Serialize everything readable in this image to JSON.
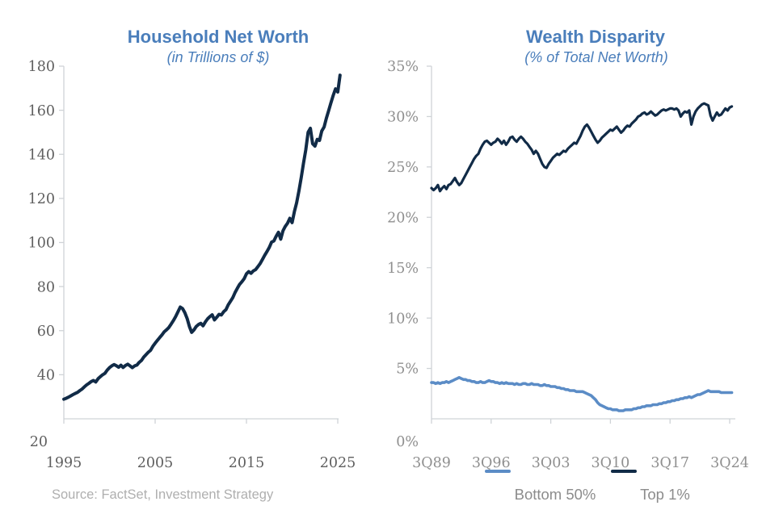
{
  "source_note": "Source: FactSet, Investment Strategy",
  "colors": {
    "title_blue": "#4a7ebb",
    "navy": "#112b47",
    "light_blue": "#5b8cc6",
    "axis_gray": "#cfd3d7",
    "left_tick_label": "#5f5f5f",
    "right_tick_label": "#8f8f8f",
    "legend_text": "#8c8c8c",
    "source_gray": "#afafaf"
  },
  "chart_data": [
    {
      "type": "line",
      "title": "Household Net Worth",
      "subtitle": "(in Trillions of $)",
      "xlabel": "",
      "ylabel": "",
      "grid": false,
      "legend_position": "none",
      "x_range": [
        1995,
        2025
      ],
      "y_range": [
        20,
        180
      ],
      "y_ticks": [
        {
          "value": 180,
          "label": "180"
        },
        {
          "value": 160,
          "label": "160"
        },
        {
          "value": 140,
          "label": "140"
        },
        {
          "value": 120,
          "label": "120"
        },
        {
          "value": 100,
          "label": "100"
        },
        {
          "value": 80,
          "label": "80"
        },
        {
          "value": 60,
          "label": "60"
        },
        {
          "value": 40,
          "label": "40"
        },
        {
          "value": 20,
          "label": "20"
        }
      ],
      "x_ticks": [
        {
          "value": 1995,
          "label": "1995"
        },
        {
          "value": 2005,
          "label": "2005"
        },
        {
          "value": 2015,
          "label": "2015"
        },
        {
          "value": 2025,
          "label": "2025"
        }
      ],
      "x_start": 1995.0,
      "x_step": 0.25,
      "series": [
        {
          "name": "Household Net Worth",
          "color": "#112b47",
          "width": 4,
          "values": [
            28.9,
            29.3,
            29.8,
            30.4,
            31.0,
            31.5,
            32.0,
            32.8,
            33.5,
            34.5,
            35.4,
            36.1,
            36.9,
            37.4,
            36.7,
            38.2,
            39.1,
            40.0,
            40.6,
            42.1,
            43.2,
            44.0,
            44.6,
            44.1,
            43.4,
            44.3,
            43.3,
            44.2,
            44.8,
            44.0,
            43.2,
            44.0,
            44.4,
            45.6,
            46.5,
            48.0,
            49.1,
            50.2,
            51.1,
            52.9,
            54.3,
            55.6,
            56.9,
            58.1,
            59.5,
            60.4,
            61.4,
            63.0,
            64.6,
            66.4,
            68.6,
            70.7,
            70.0,
            68.2,
            65.5,
            61.9,
            59.2,
            60.3,
            61.9,
            62.8,
            63.3,
            62.2,
            64.0,
            65.4,
            66.4,
            67.2,
            64.9,
            66.1,
            67.4,
            67.1,
            68.6,
            69.5,
            71.7,
            73.3,
            75.0,
            77.3,
            79.2,
            81.0,
            82.2,
            83.6,
            85.8,
            86.8,
            86.0,
            87.1,
            87.7,
            89.0,
            90.4,
            92.3,
            94.2,
            95.9,
            97.8,
            100.2,
            100.7,
            102.8,
            104.6,
            101.5,
            105.3,
            107.3,
            108.8,
            111.0,
            109.0,
            114.0,
            118.0,
            123.5,
            129.5,
            136.0,
            142.0,
            150.0,
            151.8,
            144.8,
            143.7,
            146.8,
            146.3,
            150.6,
            152.4,
            156.4,
            159.8,
            163.3,
            166.8,
            169.7,
            168.3,
            175.9
          ]
        }
      ]
    },
    {
      "type": "line",
      "title": "Wealth Disparity",
      "subtitle": "(% of Total Net Worth)",
      "xlabel": "",
      "ylabel": "",
      "grid": false,
      "legend_position": "bottom",
      "x_range": [
        1989.75,
        2024.75
      ],
      "y_range": [
        0,
        35
      ],
      "y_ticks": [
        {
          "value": 35,
          "label": "35%"
        },
        {
          "value": 30,
          "label": "30%"
        },
        {
          "value": 25,
          "label": "25%"
        },
        {
          "value": 20,
          "label": "20%"
        },
        {
          "value": 15,
          "label": "15%"
        },
        {
          "value": 10,
          "label": "10%"
        },
        {
          "value": 5,
          "label": "5%"
        },
        {
          "value": 0,
          "label": "0%"
        }
      ],
      "x_ticks": [
        {
          "value": 1989.75,
          "label": "3Q89"
        },
        {
          "value": 1996.75,
          "label": "3Q96"
        },
        {
          "value": 2003.75,
          "label": "3Q03"
        },
        {
          "value": 2010.75,
          "label": "3Q10"
        },
        {
          "value": 2017.75,
          "label": "3Q17"
        },
        {
          "value": 2024.75,
          "label": "3Q24"
        }
      ],
      "x_start": 1989.75,
      "x_step": 0.25,
      "series": [
        {
          "name": "Bottom 50%",
          "color": "#5b8cc6",
          "width": 3.6,
          "values": [
            3.6,
            3.6,
            3.5,
            3.6,
            3.5,
            3.6,
            3.6,
            3.7,
            3.6,
            3.7,
            3.8,
            3.9,
            4.0,
            4.1,
            4.0,
            3.9,
            3.9,
            3.8,
            3.8,
            3.7,
            3.7,
            3.6,
            3.6,
            3.7,
            3.6,
            3.6,
            3.7,
            3.8,
            3.7,
            3.7,
            3.6,
            3.6,
            3.5,
            3.6,
            3.5,
            3.6,
            3.5,
            3.5,
            3.5,
            3.4,
            3.5,
            3.4,
            3.4,
            3.5,
            3.5,
            3.4,
            3.4,
            3.5,
            3.4,
            3.4,
            3.4,
            3.3,
            3.3,
            3.4,
            3.3,
            3.3,
            3.2,
            3.2,
            3.2,
            3.1,
            3.1,
            3.0,
            3.0,
            2.9,
            2.9,
            2.8,
            2.8,
            2.8,
            2.7,
            2.7,
            2.7,
            2.7,
            2.6,
            2.5,
            2.4,
            2.3,
            2.1,
            1.9,
            1.6,
            1.4,
            1.3,
            1.2,
            1.1,
            1.0,
            1.0,
            0.9,
            0.9,
            0.9,
            0.8,
            0.8,
            0.8,
            0.9,
            0.9,
            0.9,
            0.9,
            1.0,
            1.0,
            1.1,
            1.1,
            1.2,
            1.2,
            1.3,
            1.3,
            1.3,
            1.4,
            1.4,
            1.4,
            1.5,
            1.5,
            1.6,
            1.6,
            1.7,
            1.7,
            1.8,
            1.8,
            1.9,
            1.9,
            2.0,
            2.0,
            2.1,
            2.1,
            2.2,
            2.1,
            2.2,
            2.3,
            2.4,
            2.4,
            2.5,
            2.6,
            2.7,
            2.8,
            2.7,
            2.7,
            2.7,
            2.7,
            2.7,
            2.6,
            2.6,
            2.6,
            2.6,
            2.6,
            2.6
          ]
        },
        {
          "name": "Top 1%",
          "color": "#112b47",
          "width": 3.2,
          "values": [
            22.9,
            22.7,
            22.9,
            23.2,
            22.6,
            22.9,
            23.1,
            22.8,
            23.2,
            23.3,
            23.6,
            23.9,
            23.5,
            23.2,
            23.4,
            23.8,
            24.2,
            24.6,
            25.0,
            25.4,
            25.8,
            26.1,
            26.3,
            26.8,
            27.2,
            27.5,
            27.6,
            27.4,
            27.2,
            27.4,
            27.5,
            27.8,
            27.6,
            27.3,
            27.6,
            27.2,
            27.5,
            27.9,
            28.0,
            27.7,
            27.5,
            27.8,
            28.0,
            27.8,
            27.5,
            27.3,
            27.0,
            26.7,
            26.3,
            26.6,
            26.3,
            25.8,
            25.3,
            25.0,
            24.9,
            25.3,
            25.6,
            25.9,
            26.1,
            26.3,
            26.2,
            26.4,
            26.6,
            26.5,
            26.8,
            27.0,
            27.2,
            27.4,
            27.3,
            27.7,
            28.1,
            28.6,
            29.0,
            29.2,
            28.9,
            28.5,
            28.1,
            27.7,
            27.4,
            27.6,
            27.9,
            28.1,
            28.3,
            28.5,
            28.7,
            28.6,
            28.8,
            29.0,
            28.7,
            28.4,
            28.6,
            28.9,
            29.1,
            29.0,
            29.3,
            29.5,
            29.7,
            30.0,
            30.1,
            30.3,
            30.4,
            30.2,
            30.3,
            30.5,
            30.3,
            30.1,
            30.2,
            30.4,
            30.6,
            30.7,
            30.6,
            30.7,
            30.8,
            30.8,
            30.7,
            30.8,
            30.6,
            30.0,
            30.3,
            30.5,
            30.4,
            30.6,
            29.2,
            30.0,
            30.5,
            30.8,
            31.0,
            31.2,
            31.3,
            31.2,
            31.1,
            30.1,
            29.6,
            30.0,
            30.4,
            30.1,
            30.2,
            30.5,
            30.8,
            30.6,
            30.9,
            31.0
          ]
        }
      ],
      "legend": [
        "Bottom 50%",
        "Top 1%"
      ]
    }
  ]
}
